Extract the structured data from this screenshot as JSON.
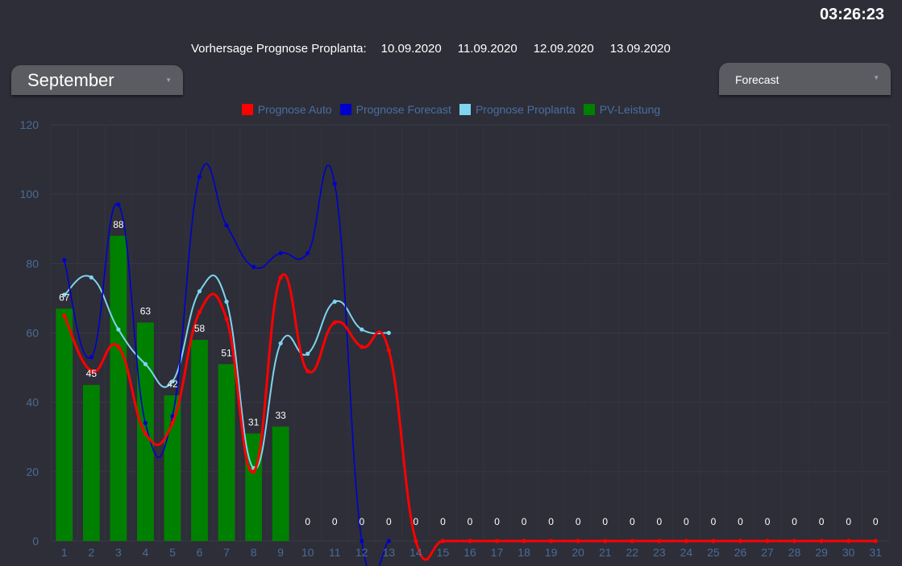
{
  "clock": "03:26:23",
  "forecast_header": {
    "title": "Vorhersage Prognose Proplanta:",
    "dates": [
      "10.09.2020",
      "11.09.2020",
      "12.09.2020",
      "13.09.2020"
    ]
  },
  "month_select": {
    "value": "September"
  },
  "mode_select": {
    "value": "Forecast"
  },
  "colors": {
    "background": "#2d2e38",
    "prognose_auto": "#ff0000",
    "prognose_forecast": "#0000cc",
    "prognose_proplanta": "#7fd4f0",
    "pv_leistung": "#008000"
  },
  "chart_data": {
    "type": "bar",
    "title": "",
    "xlabel": "",
    "ylabel": "",
    "ylim": [
      0,
      120
    ],
    "yticks": [
      0,
      20,
      40,
      60,
      80,
      100,
      120
    ],
    "grid": true,
    "legend_position": "top-center",
    "categories": [
      "1",
      "2",
      "3",
      "4",
      "5",
      "6",
      "7",
      "8",
      "9",
      "10",
      "11",
      "12",
      "13",
      "14",
      "15",
      "16",
      "17",
      "18",
      "19",
      "20",
      "21",
      "22",
      "23",
      "24",
      "25",
      "26",
      "27",
      "28",
      "29",
      "30",
      "31"
    ],
    "bar_labels": [
      "67",
      "45",
      "88",
      "63",
      "42",
      "58",
      "51",
      "31",
      "33",
      "0",
      "0",
      "0",
      "0",
      "0",
      "0",
      "0",
      "0",
      "0",
      "0",
      "0",
      "0",
      "0",
      "0",
      "0",
      "0",
      "0",
      "0",
      "0",
      "0",
      "0",
      "0"
    ],
    "series": [
      {
        "name": "Prognose Auto",
        "type": "line",
        "color": "#ff0000",
        "values": [
          65,
          49,
          56,
          31,
          34,
          66,
          64,
          20,
          76,
          49,
          63,
          56,
          55,
          0,
          0,
          0,
          0,
          0,
          0,
          0,
          0,
          0,
          0,
          0,
          0,
          0,
          0,
          0,
          0,
          0,
          0
        ]
      },
      {
        "name": "Prognose Forecast",
        "type": "line",
        "color": "#0000cc",
        "values": [
          81,
          53,
          97,
          34,
          36,
          105,
          91,
          79,
          83,
          83,
          103,
          0,
          0,
          null,
          null,
          null,
          null,
          null,
          null,
          null,
          null,
          null,
          null,
          null,
          null,
          null,
          null,
          null,
          null,
          null,
          null
        ]
      },
      {
        "name": "Prognose Proplanta",
        "type": "line",
        "color": "#7fd4f0",
        "values": [
          71,
          76,
          61,
          51,
          46,
          72,
          69,
          21,
          57,
          54,
          69,
          61,
          60,
          null,
          null,
          null,
          null,
          null,
          null,
          null,
          null,
          null,
          null,
          null,
          null,
          null,
          null,
          null,
          null,
          null,
          null
        ]
      },
      {
        "name": "PV-Leistung",
        "type": "bar",
        "color": "#008000",
        "values": [
          67,
          45,
          88,
          63,
          42,
          58,
          51,
          31,
          33,
          0,
          0,
          0,
          0,
          0,
          0,
          0,
          0,
          0,
          0,
          0,
          0,
          0,
          0,
          0,
          0,
          0,
          0,
          0,
          0,
          0,
          0
        ]
      }
    ]
  }
}
